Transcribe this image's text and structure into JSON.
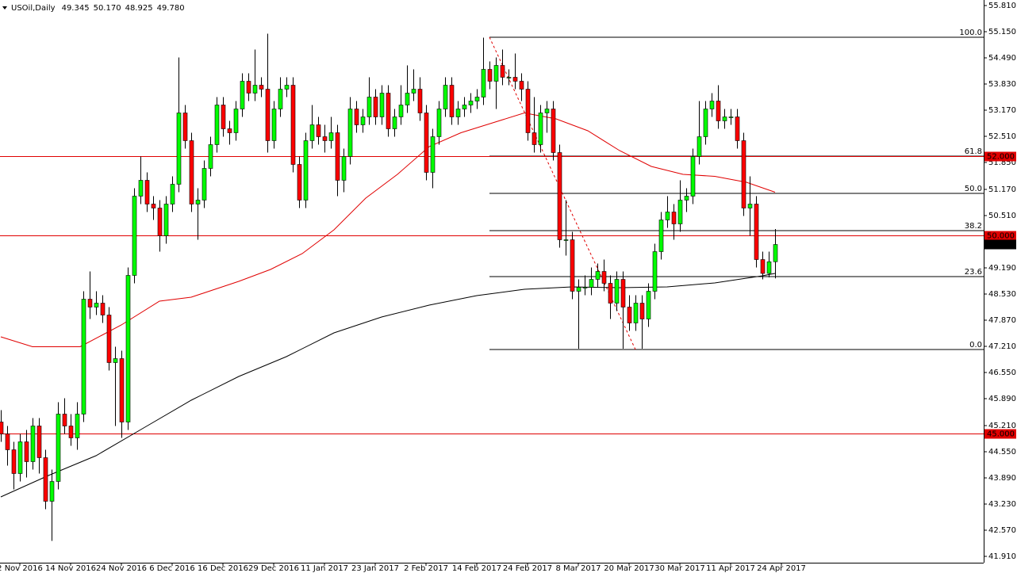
{
  "chart_data": {
    "type": "candlestick",
    "title": "USOil,Daily",
    "last_quote": [
      {
        "value": 49.345,
        "label": "49.345"
      },
      {
        "value": 50.17,
        "label": "50.170"
      },
      {
        "value": 48.925,
        "label": "48.925"
      },
      {
        "value": 49.78,
        "label": "49.780"
      }
    ],
    "open": [
      45.3,
      45.0,
      44.6,
      44.0,
      44.8,
      44.3,
      45.2,
      44.4,
      43.3,
      43.8,
      45.5,
      45.2,
      44.9,
      45.5,
      48.4,
      48.2,
      48.3,
      48.0,
      46.8,
      46.9,
      45.3,
      49.0,
      51.0,
      51.4,
      50.8,
      50.7,
      50.0,
      50.8,
      51.3,
      53.1,
      52.4,
      50.8,
      50.9,
      51.7,
      52.3,
      53.3,
      52.7,
      52.6,
      53.2,
      53.9,
      53.6,
      53.8,
      53.7,
      52.4,
      53.2,
      53.7,
      53.8,
      51.8,
      50.9,
      52.4,
      52.8,
      52.5,
      52.4,
      52.6,
      51.4,
      52.0,
      53.2,
      52.8,
      53.0,
      53.5,
      53.0,
      53.6,
      52.7,
      53.0,
      53.3,
      53.6,
      53.7,
      53.1,
      51.6,
      52.5,
      53.2,
      53.8,
      53.0,
      53.2,
      53.3,
      53.4,
      53.5,
      54.2,
      53.9,
      54.3,
      54.0,
      54.0,
      53.9,
      53.7,
      52.6,
      52.3,
      53.1,
      53.2,
      52.1,
      49.9,
      49.9,
      48.6,
      48.7,
      48.7,
      48.9,
      49.1,
      48.8,
      48.3,
      48.9,
      48.2,
      47.8,
      48.3,
      47.9,
      48.6,
      49.6,
      50.4,
      50.6,
      50.3,
      50.9,
      51.0,
      52.0,
      52.5,
      53.2,
      53.4,
      52.9,
      53.0,
      53.0,
      52.4,
      50.7,
      50.8,
      49.4,
      49.05,
      49.345
    ],
    "high": [
      45.6,
      45.2,
      44.8,
      45.0,
      45.1,
      45.4,
      45.4,
      44.6,
      44.1,
      45.8,
      45.9,
      45.5,
      45.8,
      48.6,
      49.1,
      48.6,
      48.5,
      48.2,
      47.2,
      47.1,
      49.2,
      51.2,
      52.0,
      51.6,
      51.0,
      50.9,
      51.0,
      51.5,
      54.5,
      53.3,
      52.6,
      51.2,
      51.9,
      52.5,
      53.5,
      53.5,
      52.9,
      53.4,
      54.1,
      54.1,
      54.7,
      54.0,
      55.1,
      53.4,
      54.0,
      54.0,
      54.0,
      52.0,
      52.6,
      53.3,
      53.0,
      52.8,
      53.0,
      52.8,
      52.2,
      53.5,
      53.4,
      53.2,
      54.0,
      53.7,
      53.8,
      53.8,
      53.2,
      53.8,
      54.3,
      54.2,
      54.0,
      53.3,
      52.7,
      53.4,
      54.0,
      54.0,
      53.4,
      53.5,
      53.6,
      53.7,
      55.0,
      54.4,
      54.5,
      54.7,
      54.2,
      54.6,
      54.1,
      53.9,
      53.5,
      53.3,
      53.4,
      53.4,
      52.3,
      50.9,
      50.1,
      48.9,
      49.0,
      49.2,
      49.3,
      49.4,
      49.0,
      49.1,
      49.1,
      48.5,
      48.5,
      48.5,
      48.8,
      49.8,
      50.6,
      51.0,
      50.8,
      51.4,
      51.2,
      52.2,
      53.4,
      53.4,
      53.6,
      53.8,
      53.2,
      53.2,
      53.2,
      52.6,
      51.5,
      51.0,
      49.6,
      49.6,
      50.17
    ],
    "low": [
      44.8,
      44.2,
      43.6,
      43.8,
      43.9,
      44.1,
      44.0,
      43.1,
      42.3,
      43.6,
      45.0,
      44.7,
      44.6,
      45.3,
      47.9,
      48.0,
      47.8,
      46.6,
      45.2,
      44.9,
      45.1,
      48.8,
      50.8,
      50.6,
      50.4,
      49.6,
      49.8,
      50.6,
      51.1,
      52.2,
      50.6,
      49.9,
      50.7,
      51.5,
      52.1,
      52.5,
      52.3,
      52.4,
      53.0,
      53.4,
      53.4,
      53.5,
      52.1,
      52.2,
      53.0,
      53.5,
      51.6,
      50.7,
      50.7,
      52.2,
      52.3,
      52.1,
      52.2,
      51.0,
      51.1,
      51.8,
      52.6,
      52.6,
      52.8,
      52.8,
      52.8,
      52.5,
      52.5,
      52.8,
      53.1,
      53.4,
      52.9,
      51.4,
      51.2,
      52.3,
      53.0,
      52.8,
      52.8,
      53.0,
      53.1,
      53.2,
      53.3,
      53.7,
      53.2,
      53.8,
      53.8,
      53.7,
      53.4,
      52.4,
      52.1,
      52.1,
      52.6,
      51.9,
      49.7,
      49.5,
      48.4,
      47.15,
      48.5,
      48.5,
      48.7,
      48.6,
      47.9,
      48.1,
      47.15,
      47.6,
      47.6,
      47.15,
      47.7,
      48.4,
      49.4,
      50.2,
      49.9,
      50.1,
      50.6,
      50.8,
      51.8,
      52.3,
      53.0,
      52.7,
      52.7,
      52.8,
      52.2,
      50.5,
      50.0,
      49.2,
      48.9,
      48.95,
      48.925
    ],
    "close": [
      45.0,
      44.6,
      44.0,
      44.8,
      44.3,
      45.2,
      44.4,
      43.3,
      43.8,
      45.5,
      45.2,
      44.9,
      45.5,
      48.4,
      48.2,
      48.3,
      48.0,
      46.8,
      46.9,
      45.3,
      49.0,
      51.0,
      51.4,
      50.8,
      50.7,
      50.0,
      50.8,
      51.3,
      53.1,
      52.4,
      50.8,
      50.9,
      51.7,
      52.3,
      53.3,
      52.7,
      52.6,
      53.2,
      53.9,
      53.6,
      53.8,
      53.7,
      52.4,
      53.2,
      53.7,
      53.8,
      51.8,
      50.9,
      52.4,
      52.8,
      52.5,
      52.4,
      52.6,
      51.4,
      52.0,
      53.2,
      52.8,
      53.0,
      53.5,
      53.0,
      53.6,
      52.7,
      53.0,
      53.3,
      53.6,
      53.7,
      53.1,
      51.6,
      52.5,
      53.2,
      53.8,
      53.0,
      53.2,
      53.3,
      53.4,
      53.5,
      54.2,
      53.9,
      54.3,
      54.0,
      54.0,
      53.9,
      53.7,
      52.6,
      52.3,
      53.1,
      53.2,
      52.1,
      49.9,
      49.9,
      48.6,
      48.7,
      48.7,
      48.9,
      49.1,
      48.8,
      48.3,
      48.9,
      48.2,
      47.8,
      48.3,
      47.9,
      48.6,
      49.6,
      50.4,
      50.6,
      50.3,
      50.9,
      51.0,
      52.0,
      52.5,
      53.2,
      53.4,
      52.9,
      53.0,
      53.0,
      52.4,
      50.7,
      50.8,
      49.4,
      49.05,
      49.345,
      49.78
    ],
    "up_color": "#00ff00",
    "down_color": "#ff0000",
    "series": [
      {
        "color": "#e00000",
        "x": [
          0,
          5,
          12.5,
          19,
          25,
          30,
          37.5,
          42.5,
          47.5,
          52.5,
          57.5,
          62.5,
          67.5,
          72.5,
          77.5,
          82.5,
          87.5,
          92.5,
          97.5,
          102.5,
          107.5,
          112.5,
          117.5,
          122
        ],
        "values": [
          47.45,
          47.2,
          47.2,
          47.75,
          48.35,
          48.45,
          48.85,
          49.15,
          49.55,
          50.15,
          50.95,
          51.55,
          52.25,
          52.6,
          52.85,
          53.1,
          52.95,
          52.65,
          52.15,
          51.75,
          51.55,
          51.5,
          51.35,
          51.1
        ]
      },
      {
        "color": "#000000",
        "x": [
          0,
          7.5,
          15,
          22.5,
          30,
          37.5,
          45,
          52.5,
          60,
          67.5,
          75,
          82.5,
          90,
          97.5,
          105,
          112.5,
          120,
          122
        ],
        "values": [
          43.41,
          43.95,
          44.45,
          45.15,
          45.85,
          46.45,
          46.95,
          47.55,
          47.95,
          48.25,
          48.49,
          48.65,
          48.71,
          48.69,
          48.71,
          48.81,
          48.99,
          49.05
        ]
      }
    ],
    "hlines": [
      {
        "value": 52,
        "label": "52.000",
        "color": "#e00000"
      },
      {
        "value": 50,
        "label": "50.000",
        "color": "#e00000"
      },
      {
        "value": 45,
        "label": "45.000",
        "color": "#e00000"
      }
    ],
    "current_price": {
      "value": 49.78,
      "label": "49.780"
    },
    "fib": {
      "start": 77,
      "end": 100,
      "levels": [
        {
          "level": {
            "value": 100,
            "label": "100.0"
          },
          "price": 55.01
        },
        {
          "level": 61.8,
          "price": 52.01
        },
        {
          "level": {
            "value": 50,
            "label": "50.0"
          },
          "price": 51.07
        },
        {
          "level": 38.2,
          "price": 50.13
        },
        {
          "level": 23.6,
          "price": 48.97
        },
        {
          "level": {
            "value": 0,
            "label": "0.0"
          },
          "price": 47.13
        }
      ]
    },
    "xlim": [
      -0.125,
      154.875
    ],
    "ylim": [
      41.75,
      55.95
    ],
    "xticks": [
      {
        "value": 3,
        "label": "2 Nov 2016"
      },
      {
        "value": 11,
        "label": "14 Nov 2016"
      },
      {
        "value": 19,
        "label": "24 Nov 2016"
      },
      {
        "value": 27,
        "label": "6 Dec 2016"
      },
      {
        "value": 35,
        "label": "16 Dec 2016"
      },
      {
        "value": 43,
        "label": "29 Dec 2016"
      },
      {
        "value": 51,
        "label": "11 Jan 2017"
      },
      {
        "value": 59,
        "label": "23 Jan 2017"
      },
      {
        "value": 67,
        "label": "2 Feb 2017"
      },
      {
        "value": 75,
        "label": "14 Feb 2017"
      },
      {
        "value": 83,
        "label": "24 Feb 2017"
      },
      {
        "value": 91,
        "label": "8 Mar 2017"
      },
      {
        "value": 99,
        "label": "20 Mar 2017"
      },
      {
        "value": 107,
        "label": "30 Mar 2017"
      },
      {
        "value": 115,
        "label": "11 Apr 2017"
      },
      {
        "value": 123,
        "label": "24 Apr 2017"
      }
    ],
    "yticks": [
      {
        "value": 55.81,
        "label": "55.810"
      },
      {
        "value": 55.15,
        "label": "55.150"
      },
      {
        "value": 54.49,
        "label": "54.490"
      },
      {
        "value": 53.83,
        "label": "53.830"
      },
      {
        "value": 53.17,
        "label": "53.170"
      },
      {
        "value": 52.51,
        "label": "52.510"
      },
      {
        "value": 51.85,
        "label": "51.850"
      },
      {
        "value": 51.17,
        "label": "51.170"
      },
      {
        "value": 50.51,
        "label": "50.510"
      },
      {
        "value": 49.19,
        "label": "49.190"
      },
      {
        "value": 48.53,
        "label": "48.530"
      },
      {
        "value": 47.87,
        "label": "47.870"
      },
      {
        "value": 47.21,
        "label": "47.210"
      },
      {
        "value": 46.55,
        "label": "46.550"
      },
      {
        "value": 45.89,
        "label": "45.890"
      },
      {
        "value": 45.21,
        "label": "45.210"
      },
      {
        "value": 44.55,
        "label": "44.550"
      },
      {
        "value": 43.89,
        "label": "43.890"
      },
      {
        "value": 43.23,
        "label": "43.230"
      },
      {
        "value": 42.57,
        "label": "42.570"
      },
      {
        "value": 41.91,
        "label": "41.910"
      }
    ]
  }
}
